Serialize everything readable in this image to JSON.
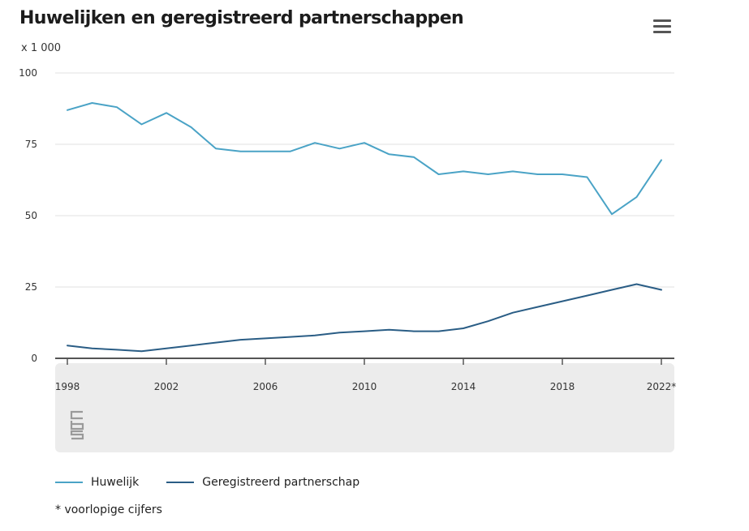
{
  "title": "Huwelijken en geregistreerd partnerschappen",
  "unit_label": "x 1 000",
  "menu_icon": "hamburger-menu-icon",
  "logo": "cbs-logo-icon",
  "footnote": "* voorlopige cijfers",
  "legend": [
    {
      "label": "Huwelijk",
      "color": "#4aa3c6"
    },
    {
      "label": "Geregistreerd partnerschap",
      "color": "#2a5d85"
    }
  ],
  "chart_data": {
    "type": "line",
    "title": "Huwelijken en geregistreerd partnerschappen",
    "ylabel": "x 1 000",
    "xlabel": "",
    "ylim": [
      0,
      100
    ],
    "yticks": [
      "100",
      "75",
      "50",
      "25",
      "0"
    ],
    "xtick_labels": [
      "1998",
      "2002",
      "2006",
      "2010",
      "2014",
      "2018",
      "2022*"
    ],
    "grid": "horizontal",
    "legend_position": "bottom",
    "x": [
      1998,
      1999,
      2000,
      2001,
      2002,
      2003,
      2004,
      2005,
      2006,
      2007,
      2008,
      2009,
      2010,
      2011,
      2012,
      2013,
      2014,
      2015,
      2016,
      2017,
      2018,
      2019,
      2020,
      2021,
      2022
    ],
    "series": [
      {
        "name": "Huwelijk",
        "color": "#4aa3c6",
        "values": [
          87,
          89.5,
          88,
          82,
          86,
          81,
          73.5,
          72.5,
          72.5,
          72.5,
          75.5,
          73.5,
          75.5,
          71.5,
          70.5,
          64.5,
          65.5,
          64.5,
          65.5,
          64.5,
          64.5,
          63.5,
          50.5,
          56.5,
          69.5
        ]
      },
      {
        "name": "Geregistreerd partnerschap",
        "color": "#2a5d85",
        "values": [
          4.5,
          3.5,
          3,
          2.5,
          3.5,
          4.5,
          5.5,
          6.5,
          7,
          7.5,
          8,
          9,
          9.5,
          10,
          9.5,
          9.5,
          10.5,
          13,
          16,
          18,
          20,
          22,
          24,
          26,
          24
        ]
      }
    ]
  }
}
